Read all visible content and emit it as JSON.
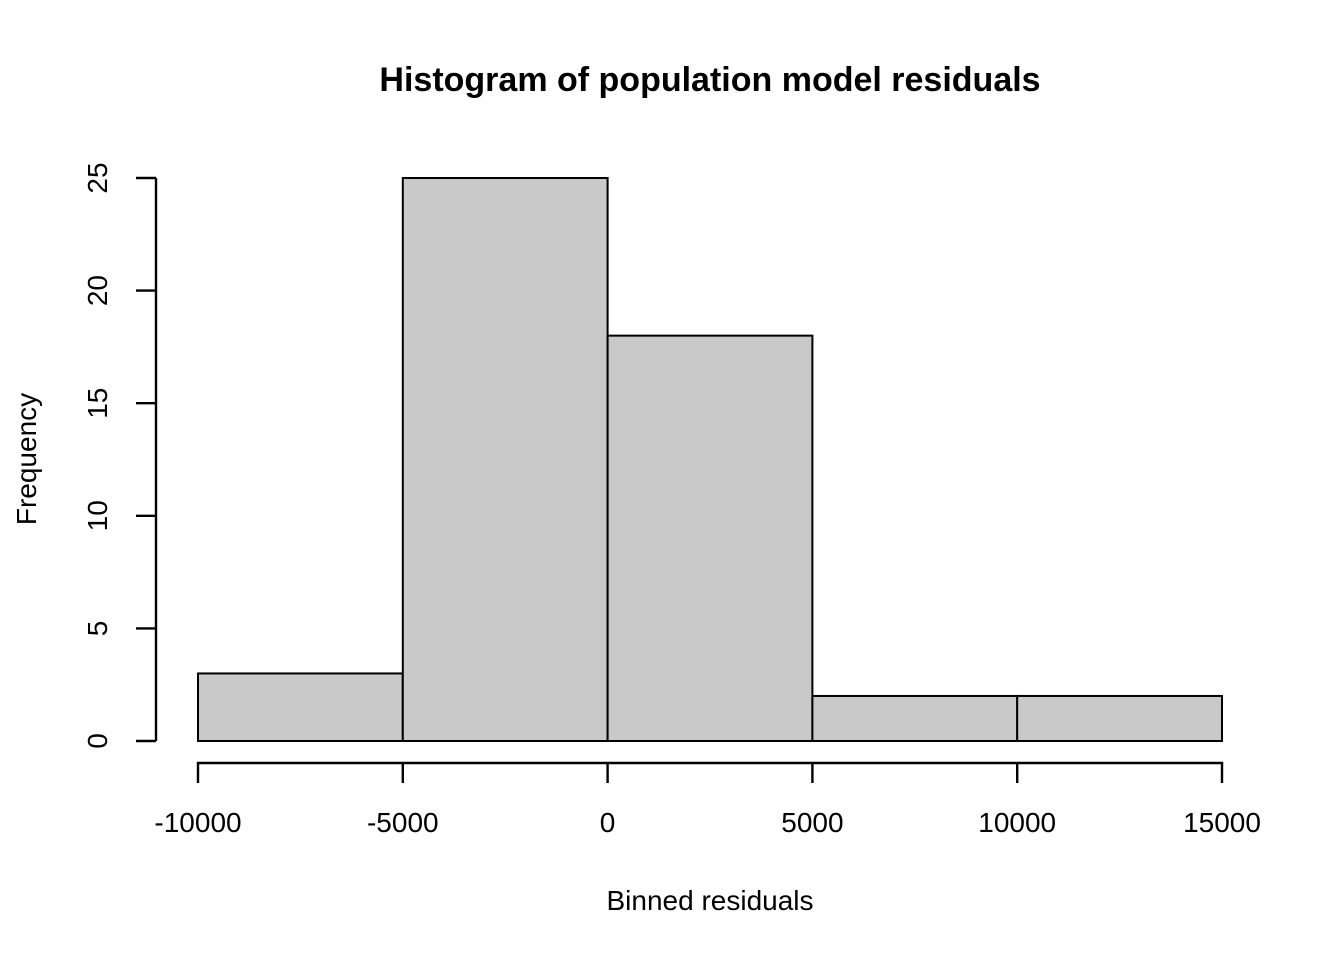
{
  "chart_data": {
    "type": "bar",
    "subtype": "histogram",
    "title": "Histogram of population model residuals",
    "xlabel": "Binned residuals",
    "ylabel": "Frequency",
    "bin_edges": [
      -10000,
      -5000,
      0,
      5000,
      10000,
      15000
    ],
    "counts": [
      3,
      25,
      18,
      2,
      2
    ],
    "xlim": [
      -10000,
      15000
    ],
    "ylim": [
      0,
      25
    ],
    "x_ticks": [
      -10000,
      -5000,
      0,
      5000,
      10000,
      15000
    ],
    "x_tick_labels": [
      "-10000",
      "-5000",
      "0",
      "5000",
      "10000",
      "15000"
    ],
    "y_ticks": [
      0,
      5,
      10,
      15,
      20,
      25
    ],
    "y_tick_labels": [
      "0",
      "5",
      "10",
      "15",
      "20",
      "25"
    ],
    "grid": false,
    "legend": "none",
    "colors": {
      "bar_fill": "#c9c9c9",
      "bar_stroke": "#000000",
      "axis": "#000000",
      "text": "#000000",
      "background": "#ffffff"
    }
  }
}
